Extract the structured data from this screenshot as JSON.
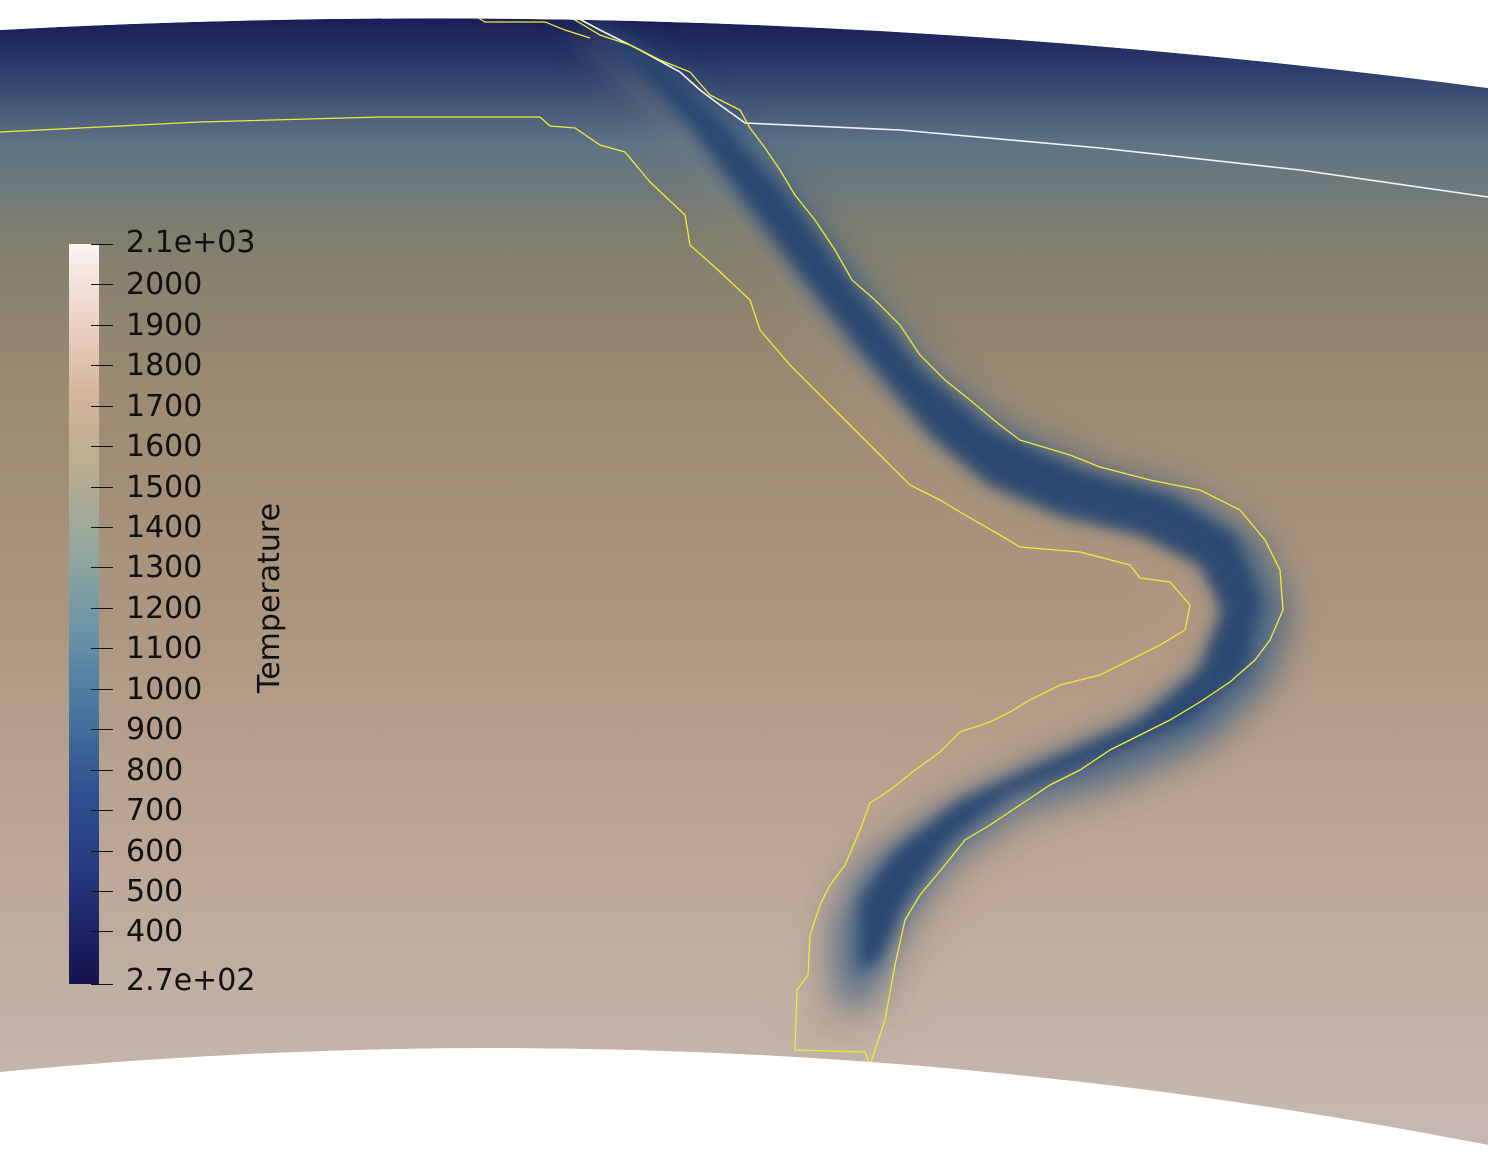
{
  "scalar_bar": {
    "title": "Temperature",
    "range_max_label": "2.1e+03",
    "range_min_label": "2.7e+02",
    "range": [
      270,
      2100
    ],
    "ticks": [
      "2000",
      "1900",
      "1800",
      "1700",
      "1600",
      "1500",
      "1400",
      "1300",
      "1200",
      "1100",
      "1000",
      "900",
      "800",
      "700",
      "600",
      "500",
      "400"
    ],
    "tick_values": [
      2000,
      1900,
      1800,
      1700,
      1600,
      1500,
      1400,
      1300,
      1200,
      1100,
      1000,
      900,
      800,
      700,
      600,
      500,
      400
    ],
    "colormap": "batlow-like (navy → slate blue → tan → off-white)",
    "colors": [
      "#1a1852",
      "#233a6e",
      "#3a6690",
      "#7595a6",
      "#a09a80",
      "#b59c80",
      "#cab0a0",
      "#f3e3dd",
      "#fbf4f4"
    ]
  },
  "view": {
    "background": "#ffffff",
    "domain": "spherical-shell slice of mantle temperature field",
    "slab_contour_color": "#f2ea3a",
    "surface_contour_color": "#f3f3f6"
  }
}
